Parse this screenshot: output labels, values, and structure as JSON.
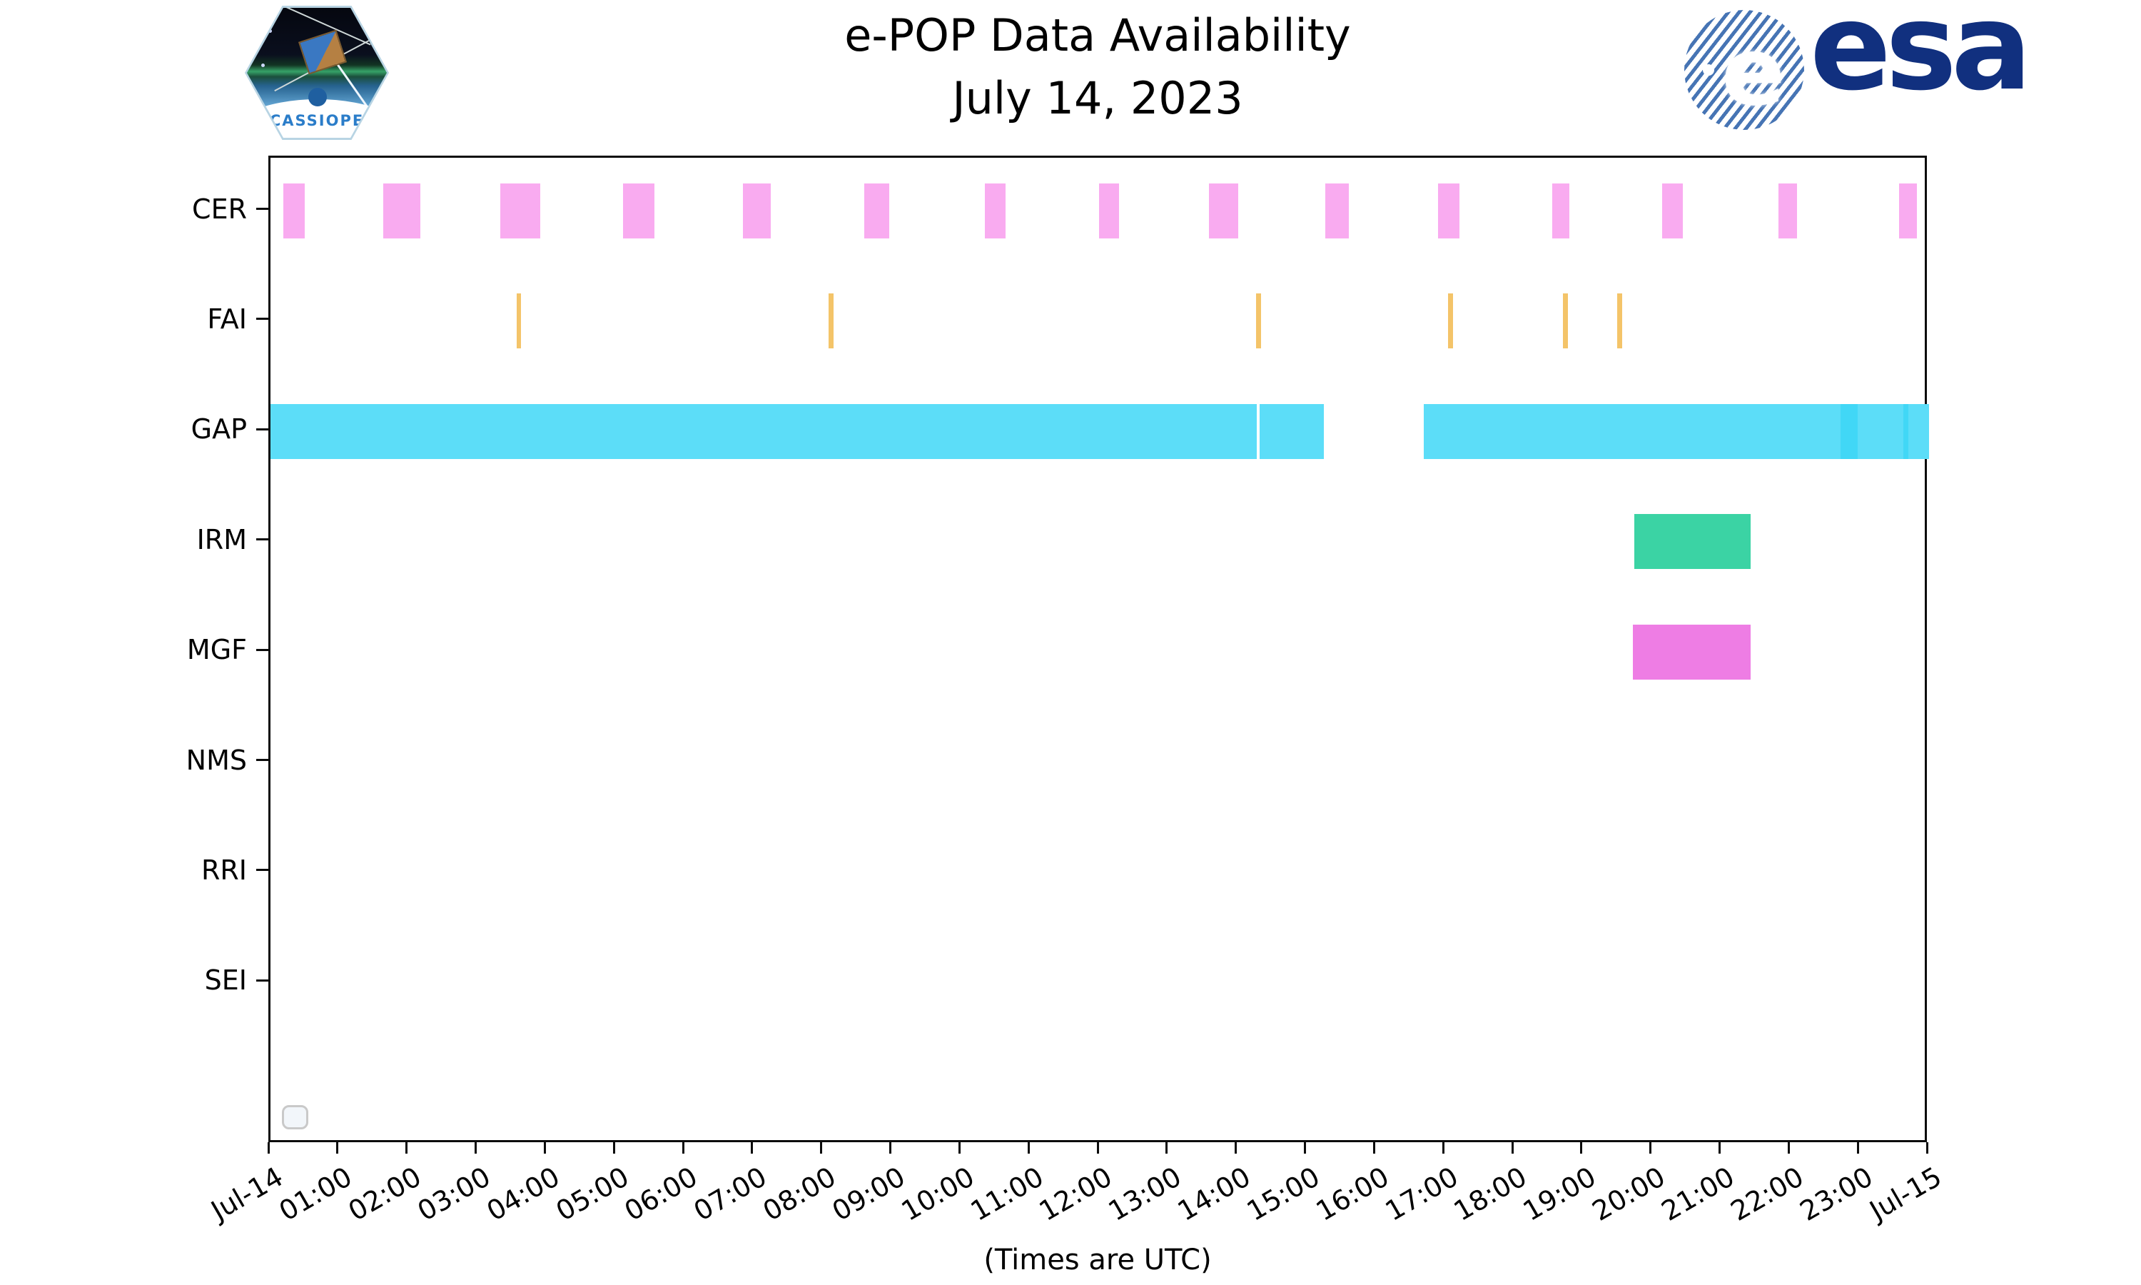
{
  "header": {
    "title_line1": "e-POP Data Availability",
    "title_line2": "July 14, 2023",
    "cassiope_label": "CASSIOPE",
    "esa_text": "esa",
    "icons": {
      "left": "cassiope-mission-patch",
      "right": "esa-logo"
    }
  },
  "colors": {
    "cer": "#f9abf0",
    "fai": "#f4c469",
    "gap": "#5cddf8",
    "gap_overlay": "#41d7f6",
    "irm": "#3bd3a4",
    "mgf": "#ee7de4",
    "spine": "#0c0c0c",
    "esa_navy": "#11307f",
    "esa_stripe": "#4674b4",
    "legend_border": "#c9c9c9"
  },
  "chart_data": {
    "type": "timeline",
    "title": "e-POP Data Availability",
    "subtitle": "July 14, 2023",
    "xlabel": "(Times are UTC)",
    "x_axis": {
      "start": "Jul-14 00:00 UTC",
      "end": "Jul-15 00:00 UTC",
      "range_hours": 24,
      "tick_interval_hours": 1,
      "tick_labels": [
        "Jul-14",
        "01:00",
        "02:00",
        "03:00",
        "04:00",
        "05:00",
        "06:00",
        "07:00",
        "08:00",
        "09:00",
        "10:00",
        "11:00",
        "12:00",
        "13:00",
        "14:00",
        "15:00",
        "16:00",
        "17:00",
        "18:00",
        "19:00",
        "20:00",
        "21:00",
        "22:00",
        "23:00",
        "Jul-15"
      ],
      "tick_label_rotation_deg": 30
    },
    "y_axis": {
      "categories": [
        "CER",
        "FAI",
        "GAP",
        "IRM",
        "MGF",
        "NMS",
        "RRI",
        "SEI"
      ]
    },
    "grid": false,
    "legend": {
      "visible": true,
      "empty": true,
      "position": "lower-left"
    },
    "rows": [
      {
        "label": "CER",
        "color": "#f9abf0",
        "intervals_hours": [
          [
            0.19,
            0.5
          ],
          [
            1.63,
            2.17
          ],
          [
            3.33,
            3.9
          ],
          [
            5.1,
            5.56
          ],
          [
            6.84,
            7.24
          ],
          [
            8.59,
            8.95
          ],
          [
            10.34,
            10.64
          ],
          [
            11.99,
            12.28
          ],
          [
            13.58,
            14.0
          ],
          [
            15.26,
            15.6
          ],
          [
            16.9,
            17.2
          ],
          [
            18.55,
            18.8
          ],
          [
            20.14,
            20.44
          ],
          [
            21.82,
            22.09
          ],
          [
            23.57,
            23.82
          ]
        ]
      },
      {
        "label": "FAI",
        "color": "#f4c469",
        "intervals_hours": [
          [
            3.56,
            3.63
          ],
          [
            8.08,
            8.15
          ],
          [
            14.26,
            14.33
          ],
          [
            17.04,
            17.11
          ],
          [
            18.7,
            18.77
          ],
          [
            19.49,
            19.56
          ]
        ]
      },
      {
        "label": "GAP",
        "color": "#5cddf8",
        "intervals_hours": [
          [
            0.0,
            14.27
          ],
          [
            14.31,
            15.24
          ],
          [
            16.69,
            24.0
          ]
        ],
        "overlay_color": "#41d7f6",
        "overlay_intervals_hours": [
          [
            22.72,
            22.97
          ],
          [
            23.63,
            23.7
          ]
        ]
      },
      {
        "label": "IRM",
        "color": "#3bd3a4",
        "intervals_hours": [
          [
            19.74,
            21.42
          ]
        ]
      },
      {
        "label": "MGF",
        "color": "#ee7de4",
        "intervals_hours": [
          [
            19.71,
            21.42
          ]
        ]
      },
      {
        "label": "NMS",
        "color": "#888888",
        "intervals_hours": []
      },
      {
        "label": "RRI",
        "color": "#888888",
        "intervals_hours": []
      },
      {
        "label": "SEI",
        "color": "#888888",
        "intervals_hours": []
      }
    ]
  }
}
